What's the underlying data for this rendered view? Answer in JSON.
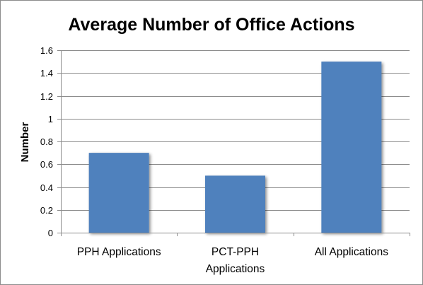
{
  "chart_data": {
    "type": "bar",
    "title": "Average Number of Office Actions",
    "xlabel": "",
    "ylabel": "Number",
    "categories": [
      [
        "PPH Applications"
      ],
      [
        "PCT-PPH",
        "Applications"
      ],
      [
        "All Applications"
      ]
    ],
    "values": [
      0.7,
      0.5,
      1.5
    ],
    "ylim": [
      0,
      1.6
    ],
    "yticks": [
      "0",
      "0.2",
      "0.4",
      "0.6",
      "0.8",
      "1",
      "1.2",
      "1.4",
      "1.6"
    ],
    "grid": true,
    "legend": "none",
    "bar_color": "#4f81bd"
  }
}
